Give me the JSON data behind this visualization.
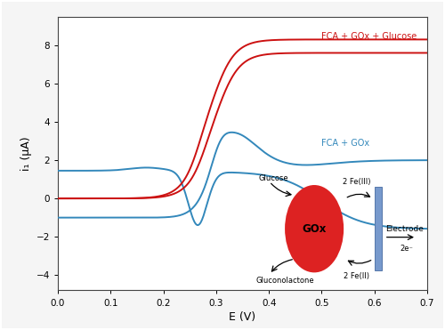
{
  "xlim": [
    0,
    0.7
  ],
  "ylim": [
    -4.8,
    9.5
  ],
  "xlabel": "E (V)",
  "ylabel": "i₁ (μA)",
  "background_color": "#f5f5f5",
  "plot_bg_color": "#ffffff",
  "red_color": "#cc1111",
  "blue_color": "#3388bb",
  "label_fca_gox_glucose": "FCA + GOx + Glucose",
  "label_fca_gox": "FCA + GOx",
  "xticks": [
    0.0,
    0.1,
    0.2,
    0.3,
    0.4,
    0.5,
    0.6,
    0.7
  ],
  "yticks": [
    -4,
    -2,
    0,
    2,
    4,
    6,
    8
  ],
  "diagram_texts": {
    "glucose": "Glucose",
    "gluconolactone": "Gluconolactone",
    "fe_III": "2 Fe(III)",
    "fe_II": "2 Fe(II)",
    "gox": "GOx",
    "electrode": "Electrode",
    "electrons": "2e⁻"
  }
}
